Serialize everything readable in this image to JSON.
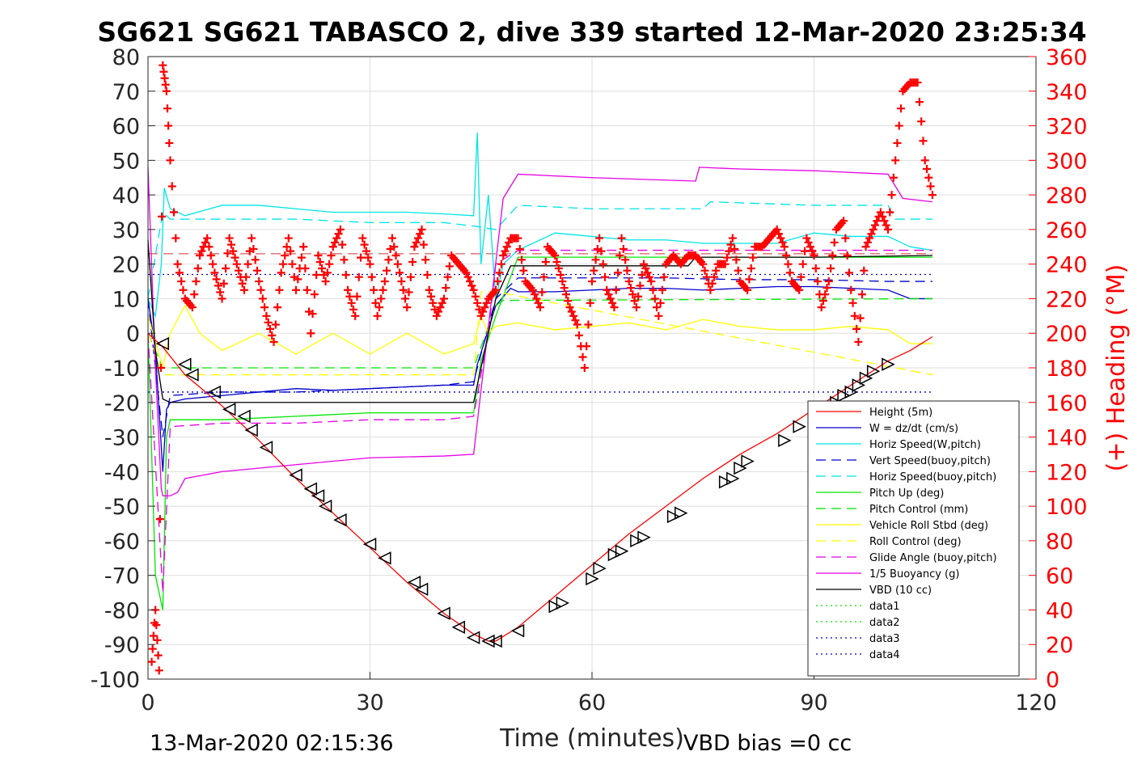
{
  "chart_data": {
    "type": "line",
    "title": "SG621 SG621 TABASCO 2, dive 339 started 12-Mar-2020 23:25:34",
    "xlabel": "Time (minutes)",
    "ylabel": "",
    "y2label": "(+) Heading (°M)",
    "footer_left": "13-Mar-2020 02:15:36",
    "footer_right": "VBD bias =0 cc",
    "xlim": [
      0,
      120
    ],
    "ylim": [
      -100,
      80
    ],
    "y2lim": [
      0,
      360
    ],
    "xticks": [
      0,
      30,
      60,
      90,
      120
    ],
    "yticks": [
      -100,
      -90,
      -80,
      -70,
      -60,
      -50,
      -40,
      -30,
      -20,
      -10,
      0,
      10,
      20,
      30,
      40,
      50,
      60,
      70,
      80
    ],
    "y2ticks": [
      0,
      20,
      40,
      60,
      80,
      100,
      120,
      140,
      160,
      180,
      200,
      220,
      240,
      260,
      280,
      300,
      320,
      340,
      360
    ],
    "grid": true,
    "legend_position": "bottom-right",
    "colors": {
      "height": "#ff0000",
      "w": "#0000cc",
      "hspeed": "#00e5e5",
      "vspeed": "#0000cc",
      "hspeed_buoy": "#00e5e5",
      "pitch_up": "#00e600",
      "pitch_ctrl": "#00e600",
      "roll": "#ffff00",
      "roll_ctrl": "#ffff00",
      "glide": "#e600e6",
      "buoy": "#e600e6",
      "vbd": "#000000",
      "heading": "#ff0000",
      "data": "#0000cc"
    },
    "series": [
      {
        "name": "Height (5m)",
        "style": "solid",
        "color": "#ff0000",
        "x": [
          0,
          2,
          5,
          10,
          15,
          20,
          25,
          30,
          35,
          40,
          44,
          46,
          47,
          50,
          55,
          60,
          65,
          70,
          75,
          80,
          85,
          90,
          95,
          100,
          103,
          106
        ],
        "y": [
          0,
          -4,
          -12,
          -21,
          -31,
          -42,
          -52,
          -62,
          -72,
          -81,
          -87,
          -89,
          -89,
          -85,
          -76,
          -67,
          -58,
          -50,
          -42,
          -35,
          -29,
          -22,
          -15,
          -8,
          -5,
          -1
        ]
      },
      {
        "name": "W = dz/dt (cm/s)",
        "style": "solid",
        "color": "#0000cc",
        "x": [
          0,
          1,
          2,
          2.5,
          3,
          5,
          10,
          15,
          20,
          25,
          30,
          35,
          40,
          44,
          44.5,
          47,
          49,
          50,
          55,
          60,
          65,
          70,
          75,
          80,
          85,
          90,
          95,
          100,
          103,
          106
        ],
        "y": [
          10,
          -5,
          -40,
          -22,
          -20,
          -19,
          -18,
          -17,
          -16,
          -16.5,
          -16,
          -15.5,
          -15,
          -15,
          -9,
          8,
          13,
          12,
          12,
          12.5,
          13,
          13,
          12.5,
          13,
          13.5,
          13.5,
          13,
          12.5,
          10,
          10
        ]
      },
      {
        "name": "Horiz Speed(W,pitch)",
        "style": "solid",
        "color": "#00e5e5",
        "x": [
          0,
          1,
          1.8,
          2.2,
          3,
          5,
          10,
          15,
          20,
          25,
          30,
          35,
          40,
          44,
          44.5,
          45,
          46,
          47,
          48,
          50,
          55,
          60,
          65,
          70,
          75,
          80,
          85,
          90,
          95,
          100,
          103,
          106
        ],
        "y": [
          10,
          5,
          20,
          42,
          36,
          34,
          37,
          37,
          36,
          35,
          35,
          35,
          34.5,
          34,
          58,
          20,
          40,
          10,
          20,
          24,
          29,
          28,
          27,
          27,
          26,
          26,
          26,
          29,
          28,
          28,
          25,
          24
        ]
      },
      {
        "name": "Vert Speed(buoy,pitch)",
        "style": "dash",
        "color": "#0000cc",
        "x": [
          0,
          2,
          3,
          10,
          20,
          30,
          40,
          44,
          47,
          50,
          60,
          70,
          80,
          90,
          100,
          106
        ],
        "y": [
          10,
          -30,
          -18,
          -17,
          -17,
          -16,
          -15,
          -14,
          10,
          16,
          16,
          16,
          15.5,
          15.5,
          15,
          15
        ]
      },
      {
        "name": "Horiz Speed(buoy,pitch)",
        "style": "dash",
        "color": "#00e5e5",
        "x": [
          0,
          2,
          3,
          10,
          20,
          30,
          40,
          44,
          47,
          50,
          60,
          70,
          75,
          76,
          90,
          100,
          101,
          106
        ],
        "y": [
          10,
          35,
          33,
          33,
          33,
          32,
          32,
          31,
          30,
          37,
          36,
          36,
          36,
          38,
          37,
          37,
          33,
          33
        ]
      },
      {
        "name": "Pitch Up (deg)",
        "style": "solid",
        "color": "#00e600",
        "x": [
          0,
          1,
          2,
          2.5,
          3,
          10,
          20,
          30,
          40,
          44,
          45,
          47,
          50,
          60,
          70,
          80,
          90,
          100,
          106
        ],
        "y": [
          0,
          -70,
          -80,
          -30,
          -25,
          -25,
          -24,
          -23,
          -23,
          -23,
          -8,
          5,
          22,
          22,
          22,
          22,
          22,
          22,
          22
        ]
      },
      {
        "name": "Pitch Control (mm)",
        "style": "dash",
        "color": "#00e600",
        "x": [
          0,
          2,
          2.5,
          10,
          44,
          46,
          47,
          48,
          106
        ],
        "y": [
          0,
          -10,
          -10,
          -10,
          -10,
          2,
          8,
          9.5,
          10
        ]
      },
      {
        "name": "Vehicle Roll Stbd (deg)",
        "style": "solid",
        "color": "#ffff00",
        "x": [
          0,
          2,
          3,
          5,
          7,
          10,
          15,
          20,
          25,
          30,
          35,
          40,
          44,
          45,
          46,
          47,
          50,
          55,
          60,
          65,
          70,
          75,
          80,
          85,
          90,
          95,
          100,
          103,
          106
        ],
        "y": [
          5,
          -10,
          0,
          8,
          0,
          -5,
          0,
          -6,
          0,
          -6,
          0,
          -6,
          -3,
          5,
          0,
          2,
          3,
          1,
          2,
          3,
          1,
          4,
          2,
          1,
          1,
          2,
          1,
          -3,
          -3
        ]
      },
      {
        "name": "Roll Control (deg)",
        "style": "dash",
        "color": "#ffff00",
        "x": [
          0,
          2,
          3,
          10,
          44,
          45,
          47,
          106
        ],
        "y": [
          0,
          -12,
          -12,
          -12,
          -12,
          12,
          12,
          -12
        ]
      },
      {
        "name": "Glide Angle (buoy,pitch)",
        "style": "dash",
        "color": "#e600e6",
        "x": [
          0,
          2,
          3,
          10,
          20,
          30,
          40,
          44,
          46,
          47,
          50,
          60,
          70,
          80,
          90,
          100,
          106
        ],
        "y": [
          0,
          -75,
          -27,
          -26,
          -26,
          -25,
          -25,
          -24,
          0,
          20,
          24,
          24,
          24,
          24,
          24,
          24,
          24
        ]
      },
      {
        "name": "1/5 Buoyancy (g)",
        "style": "solid",
        "color": "#e600e6",
        "x": [
          0,
          1,
          1.8,
          2,
          3,
          4,
          5,
          10,
          20,
          30,
          40,
          44,
          48,
          50,
          60,
          74,
          74.5,
          80,
          90,
          100,
          102,
          106
        ],
        "y": [
          48,
          -10,
          -45,
          -47,
          -47,
          -46,
          -42,
          -40,
          -38,
          -36,
          -35.5,
          -35,
          39,
          46,
          45,
          44,
          48,
          47.5,
          47,
          46,
          39,
          38
        ]
      },
      {
        "name": "VBD (10 cc)",
        "style": "solid",
        "color": "#000000",
        "x": [
          0,
          1,
          2,
          3,
          10,
          20,
          30,
          40,
          44,
          47,
          49,
          50,
          60,
          73,
          74,
          80,
          90,
          106
        ],
        "y": [
          27,
          -5,
          -19,
          -20,
          -20,
          -20,
          -20,
          -20,
          -20,
          10,
          19.5,
          19.5,
          19.5,
          19.5,
          22,
          22,
          22,
          22.5
        ]
      },
      {
        "name": "data1",
        "style": "dot",
        "color": "#00e600",
        "x": [],
        "y": []
      },
      {
        "name": "data2",
        "style": "dot",
        "color": "#00e600",
        "x": [],
        "y": []
      },
      {
        "name": "data3",
        "style": "dot",
        "color": "#0000cc",
        "x": [
          0,
          106
        ],
        "y": [
          17,
          17
        ]
      },
      {
        "name": "data4",
        "style": "dot",
        "color": "#0000cc",
        "x": [
          0,
          106
        ],
        "y": [
          -17,
          -17
        ]
      }
    ],
    "ref_line": {
      "color": "#cc3333",
      "style": "dash",
      "x": [
        0,
        106
      ],
      "y": [
        23,
        23
      ]
    },
    "heading": {
      "axis": "right",
      "marker": "+",
      "color": "#ff0000",
      "x": [
        0.5,
        1,
        1.5,
        2,
        2.5,
        3,
        4,
        5,
        6,
        7,
        8,
        9,
        10,
        11,
        12,
        13,
        14,
        15,
        16,
        17,
        18,
        19,
        20,
        21,
        22,
        23,
        24,
        25,
        26,
        27,
        28,
        29,
        30,
        31,
        32,
        33,
        34,
        35,
        36,
        37,
        38,
        39,
        40,
        41,
        42,
        43,
        44,
        45,
        46,
        47,
        48,
        49,
        50,
        51,
        52,
        53,
        54,
        55,
        56,
        57,
        58,
        59,
        60,
        61,
        62,
        63,
        64,
        65,
        66,
        67,
        68,
        69,
        70,
        71,
        72,
        73,
        74,
        75,
        76,
        77,
        78,
        79,
        80,
        81,
        82,
        83,
        84,
        85,
        86,
        87,
        88,
        89,
        90,
        91,
        92,
        93,
        94,
        95,
        96,
        97,
        98,
        99,
        100,
        101,
        102,
        103,
        104,
        105,
        106
      ],
      "y": [
        10,
        40,
        5,
        355,
        340,
        300,
        240,
        220,
        215,
        245,
        255,
        235,
        220,
        255,
        240,
        225,
        255,
        230,
        210,
        195,
        235,
        255,
        225,
        250,
        200,
        245,
        230,
        250,
        260,
        225,
        210,
        255,
        240,
        210,
        230,
        255,
        235,
        215,
        250,
        260,
        225,
        210,
        220,
        245,
        240,
        235,
        225,
        210,
        220,
        225,
        245,
        255,
        255,
        230,
        225,
        215,
        250,
        245,
        230,
        215,
        205,
        180,
        230,
        255,
        225,
        215,
        255,
        230,
        215,
        240,
        230,
        210,
        240,
        245,
        240,
        245,
        245,
        240,
        225,
        240,
        240,
        255,
        230,
        225,
        250,
        250,
        255,
        260,
        250,
        230,
        225,
        255,
        245,
        215,
        230,
        260,
        265,
        225,
        195,
        250,
        260,
        270,
        260,
        300,
        340,
        345,
        345,
        300,
        280
      ]
    },
    "dive_markers": {
      "marker": "triangle-left",
      "x": [
        2,
        5,
        6,
        9,
        11,
        13,
        14,
        16,
        20,
        22,
        23,
        24,
        26,
        30,
        32,
        36,
        37,
        40,
        42,
        44,
        46,
        47,
        50
      ],
      "y": [
        -3,
        -9,
        -12,
        -17,
        -22,
        -24,
        -28,
        -33,
        -41,
        -45,
        -47,
        -50,
        -54,
        -61,
        -65,
        -72,
        -74,
        -81,
        -85,
        -88,
        -89,
        -89,
        -86
      ]
    },
    "climb_markers": {
      "marker": "triangle-right",
      "x": [
        55,
        56,
        60,
        61,
        63,
        64,
        66,
        67,
        71,
        72,
        78,
        79,
        80,
        81,
        86,
        88,
        90,
        91,
        93,
        94,
        95,
        96,
        97,
        98,
        100
      ],
      "y": [
        -79,
        -78,
        -71,
        -68,
        -64,
        -63,
        -60,
        -59,
        -53,
        -52,
        -43,
        -42,
        -39,
        -37,
        -31,
        -27,
        -25,
        -24,
        -20,
        -18,
        -17,
        -15,
        -13,
        -11,
        -9
      ]
    }
  }
}
